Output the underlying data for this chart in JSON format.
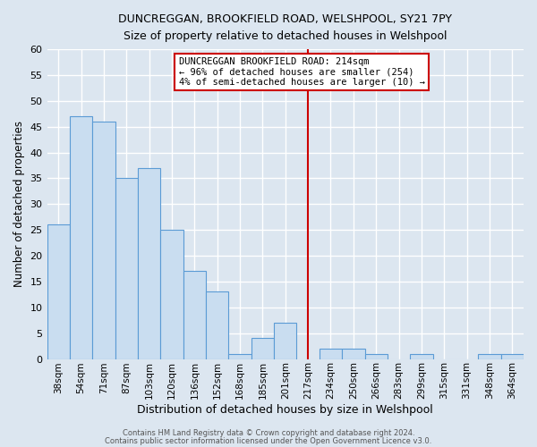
{
  "title": "DUNCREGGAN, BROOKFIELD ROAD, WELSHPOOL, SY21 7PY",
  "subtitle": "Size of property relative to detached houses in Welshpool",
  "xlabel": "Distribution of detached houses by size in Welshpool",
  "ylabel": "Number of detached properties",
  "bar_labels": [
    "38sqm",
    "54sqm",
    "71sqm",
    "87sqm",
    "103sqm",
    "120sqm",
    "136sqm",
    "152sqm",
    "168sqm",
    "185sqm",
    "201sqm",
    "217sqm",
    "234sqm",
    "250sqm",
    "266sqm",
    "283sqm",
    "299sqm",
    "315sqm",
    "331sqm",
    "348sqm",
    "364sqm"
  ],
  "bar_values": [
    26,
    47,
    46,
    35,
    37,
    25,
    17,
    13,
    1,
    4,
    7,
    0,
    2,
    2,
    1,
    0,
    1,
    0,
    0,
    1,
    1
  ],
  "bar_color": "#c9ddf0",
  "bar_edge_color": "#5b9bd5",
  "vline_x": 11.0,
  "vline_color": "#cc0000",
  "annotation_title": "DUNCREGGAN BROOKFIELD ROAD: 214sqm",
  "annotation_line1": "← 96% of detached houses are smaller (254)",
  "annotation_line2": "4% of semi-detached houses are larger (10) →",
  "ylim": [
    0,
    60
  ],
  "yticks": [
    0,
    5,
    10,
    15,
    20,
    25,
    30,
    35,
    40,
    45,
    50,
    55,
    60
  ],
  "footer_line1": "Contains HM Land Registry data © Crown copyright and database right 2024.",
  "footer_line2": "Contains public sector information licensed under the Open Government Licence v3.0.",
  "background_color": "#dce6f0"
}
